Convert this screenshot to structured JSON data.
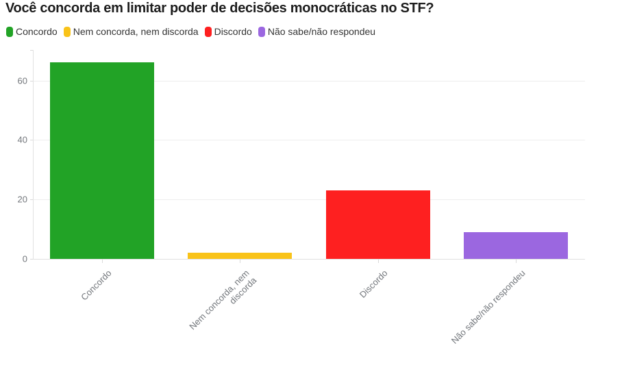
{
  "title": "Você concorda em limitar poder de decisões monocráticas no STF?",
  "legend": {
    "items": [
      {
        "label": "Concordo",
        "color": "#22a326"
      },
      {
        "label": "Nem concorda, nem discorda",
        "color": "#f9c319"
      },
      {
        "label": "Discordo",
        "color": "#fe2020"
      },
      {
        "label": "Não sabe/não respondeu",
        "color": "#9b67e0"
      }
    ]
  },
  "chart_data": {
    "type": "bar",
    "title": "Você concorda em limitar poder de decisões monocráticas no STF?",
    "categories": [
      "Concordo",
      "Nem concorda, nem discorda",
      "Discordo",
      "Não sabe/não respondeu"
    ],
    "values": [
      66,
      2,
      23,
      9
    ],
    "colors": [
      "#22a326",
      "#f9c319",
      "#fe2020",
      "#9b67e0"
    ],
    "x_tick_labels": [
      "Concordo",
      "Nem concorda, nem\ndiscorda",
      "Discordo",
      "Não sabe/não respondeu"
    ],
    "y_ticks": [
      0,
      20,
      40,
      60
    ],
    "xlabel": "",
    "ylabel": "",
    "ylim": [
      0,
      70
    ],
    "grid": "horizontal",
    "legend_position": "top-left"
  }
}
